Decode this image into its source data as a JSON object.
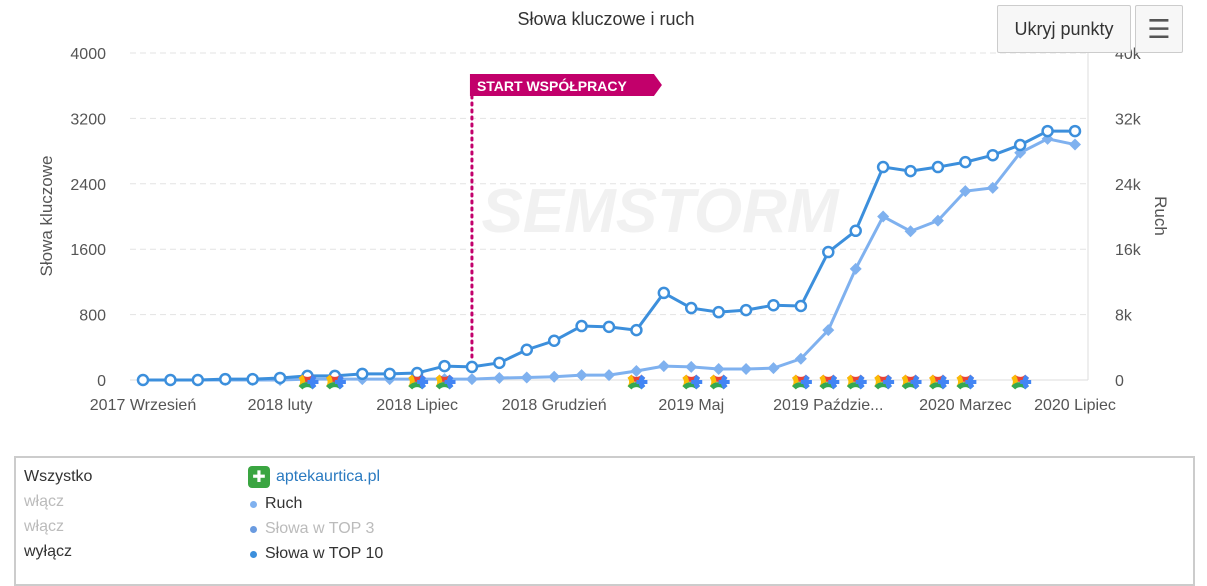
{
  "chart_data": {
    "type": "line",
    "title": "Słowa kluczowe i ruch",
    "ylabel": "Słowa kluczowe",
    "y2label": "Ruch",
    "ylim": [
      0,
      4000
    ],
    "y2lim": [
      0,
      40000
    ],
    "yticks": [
      "0",
      "800",
      "1600",
      "2400",
      "3200",
      "4000"
    ],
    "y2ticks": [
      "0",
      "8k",
      "16k",
      "24k",
      "32k",
      "40k"
    ],
    "xtick_labels": [
      {
        "i": 0,
        "label": "2017 Wrzesień"
      },
      {
        "i": 5,
        "label": "2018 luty"
      },
      {
        "i": 10,
        "label": "2018 Lipiec"
      },
      {
        "i": 15,
        "label": "2018 Grudzień"
      },
      {
        "i": 20,
        "label": "2019 Maj"
      },
      {
        "i": 25,
        "label": "2019 Paździe..."
      },
      {
        "i": 30,
        "label": "2020 Marzec"
      },
      {
        "i": 34,
        "label": "2020 Lipiec"
      }
    ],
    "n_points": 35,
    "series": [
      {
        "name": "Słowa w TOP 10",
        "axis": "left",
        "color": "#3c8fdc",
        "marker": "circle",
        "values": [
          0,
          0,
          0,
          10,
          10,
          25,
          50,
          50,
          75,
          75,
          85,
          170,
          160,
          210,
          370,
          480,
          660,
          650,
          610,
          1065,
          880,
          830,
          855,
          915,
          905,
          1565,
          1825,
          2605,
          2555,
          2605,
          2665,
          2750,
          2875,
          3045,
          3045
        ]
      },
      {
        "name": "Ruch",
        "axis": "right",
        "color": "#7fb1ef",
        "marker": "diamond",
        "values": [
          0,
          0,
          0,
          0,
          0,
          0,
          100,
          100,
          100,
          100,
          100,
          100,
          100,
          250,
          300,
          400,
          600,
          600,
          1100,
          1700,
          1600,
          1350,
          1350,
          1450,
          2600,
          6100,
          13600,
          20000,
          18200,
          19500,
          23100,
          23500,
          27800,
          29500,
          28800
        ]
      }
    ],
    "annotation": {
      "label": "START WSPÓŁPRACY",
      "i": 12,
      "color": "#c2006b"
    },
    "google_update_markers": [
      6,
      7,
      10,
      11,
      18,
      20,
      21,
      24,
      25,
      26,
      27,
      28,
      29,
      30,
      32
    ],
    "watermark": "SEMSTORM"
  },
  "toolbar": {
    "hide_points": "Ukryj punkty"
  },
  "legend": {
    "all": "Wszystko",
    "toggles": [
      "włącz",
      "włącz",
      "wyłącz"
    ],
    "site": "aptekaurtica.pl",
    "items": [
      {
        "label": "Ruch",
        "color": "#7fb1ef"
      },
      {
        "label": "Słowa w TOP 3",
        "color": "#6a9be0"
      },
      {
        "label": "Słowa w TOP 10",
        "color": "#3c8fdc"
      }
    ]
  }
}
